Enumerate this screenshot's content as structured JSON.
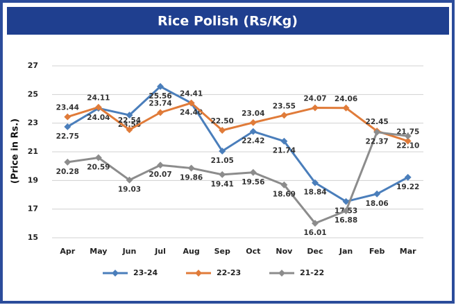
{
  "chart_data": {
    "type": "line",
    "title": "Rice Polish (Rs/Kg)",
    "y_label": "(Price in Rs.)",
    "categories": [
      "Apr",
      "May",
      "Jun",
      "Jul",
      "Aug",
      "Sep",
      "Oct",
      "Nov",
      "Dec",
      "Jan",
      "Feb",
      "Mar"
    ],
    "ylim": [
      15,
      27
    ],
    "yticks": [
      15,
      17,
      19,
      21,
      23,
      25,
      27
    ],
    "grid": true,
    "legend": "bottom",
    "series": [
      {
        "name": "23-24",
        "color": "#4a7ebb",
        "values": [
          22.75,
          24.04,
          23.56,
          25.56,
          24.4,
          21.05,
          22.42,
          21.74,
          18.84,
          17.53,
          18.06,
          19.22
        ],
        "value_labels": [
          "22.75",
          "24.04",
          "23.56",
          "25.56",
          "24.40",
          "21.05",
          "22.42",
          "21.74",
          "18.84",
          "17.53",
          "18.06",
          "19.22"
        ]
      },
      {
        "name": "22-23",
        "color": "#e07b39",
        "values": [
          23.44,
          24.11,
          22.54,
          23.74,
          24.41,
          22.5,
          23.04,
          23.55,
          24.07,
          24.06,
          22.45,
          21.75
        ],
        "value_labels": [
          "23.44",
          "24.11",
          "22.54",
          "23.74",
          "24.41",
          "22.50",
          "23.04",
          "23.55",
          "24.07",
          "24.06",
          "22.45",
          "21.75"
        ]
      },
      {
        "name": "21-22",
        "color": "#8c8c8c",
        "values": [
          20.28,
          20.59,
          19.03,
          20.07,
          19.86,
          19.41,
          19.56,
          18.69,
          16.01,
          16.88,
          22.37,
          22.1
        ],
        "value_labels": [
          "20.28",
          "20.59",
          "19.03",
          "20.07",
          "19.86",
          "19.41",
          "19.56",
          "18.69",
          "16.01",
          "16.88",
          "22.37",
          "22.10"
        ]
      }
    ]
  }
}
